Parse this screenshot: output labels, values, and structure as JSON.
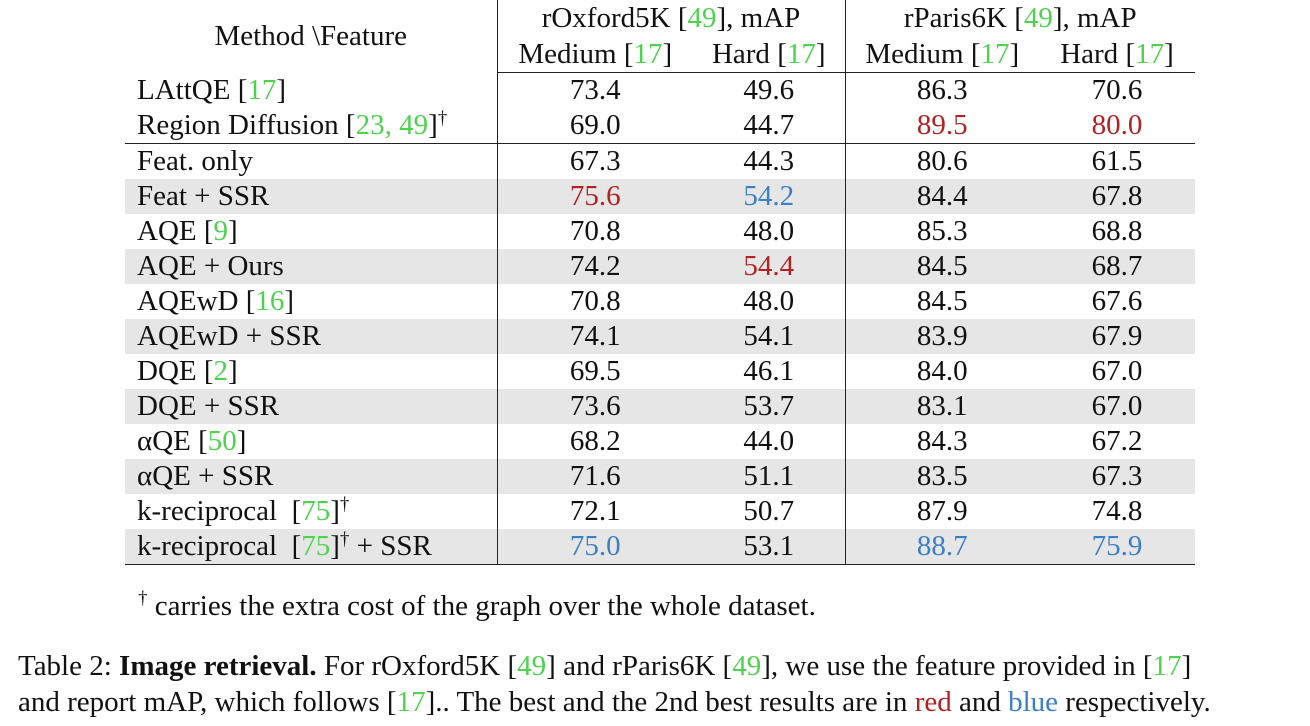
{
  "table": {
    "corner_header": "Method \\Feature",
    "groups": [
      {
        "name": "rOxford5K",
        "cite": "49",
        "metric": ", mAP"
      },
      {
        "name": "rParis6K",
        "cite": "49",
        "metric": ", mAP"
      }
    ],
    "subheaders": [
      {
        "label": "Medium",
        "cite": "17"
      },
      {
        "label": "Hard",
        "cite": "17"
      },
      {
        "label": "Medium",
        "cite": "17"
      },
      {
        "label": "Hard",
        "cite": "17"
      }
    ],
    "rows": [
      {
        "method": "LAttQE",
        "cite": "17",
        "values": [
          "73.4",
          "49.6",
          "86.3",
          "70.6"
        ]
      },
      {
        "method": "Region Diffusion",
        "cite": "23, 49",
        "values": [
          "69.0",
          "44.7",
          "89.5",
          "80.0"
        ]
      },
      {
        "method": "Feat. only",
        "values": [
          "67.3",
          "44.3",
          "80.6",
          "61.5"
        ]
      },
      {
        "method": "Feat + SSR",
        "values": [
          "75.6",
          "54.2",
          "84.4",
          "67.8"
        ]
      },
      {
        "method": "AQE",
        "cite": "9",
        "values": [
          "70.8",
          "48.0",
          "85.3",
          "68.8"
        ]
      },
      {
        "method": "AQE + Ours",
        "values": [
          "74.2",
          "54.4",
          "84.5",
          "68.7"
        ]
      },
      {
        "method": "AQEwD",
        "cite": "16",
        "values": [
          "70.8",
          "48.0",
          "84.5",
          "67.6"
        ]
      },
      {
        "method": "AQEwD + SSR",
        "values": [
          "74.1",
          "54.1",
          "83.9",
          "67.9"
        ]
      },
      {
        "method": "DQE",
        "cite": "2",
        "values": [
          "69.5",
          "46.1",
          "84.0",
          "67.0"
        ]
      },
      {
        "method": "DQE + SSR",
        "values": [
          "73.6",
          "53.7",
          "83.1",
          "67.0"
        ]
      },
      {
        "method": "αQE",
        "cite": "50",
        "values": [
          "68.2",
          "44.0",
          "84.3",
          "67.2"
        ]
      },
      {
        "method": "αQE + SSR",
        "values": [
          "71.6",
          "51.1",
          "83.5",
          "67.3"
        ]
      },
      {
        "method": "k-reciprocal",
        "cite": "75",
        "values": [
          "72.1",
          "50.7",
          "87.9",
          "74.8"
        ]
      },
      {
        "method": "k-reciprocal",
        "cite": "75",
        "suffix": " + SSR",
        "values": [
          "75.0",
          "53.1",
          "88.7",
          "75.9"
        ]
      }
    ],
    "dagger": "†",
    "footnote": " carries the extra cost of the graph over the whole dataset."
  },
  "caption": {
    "label": "Table 2: ",
    "bold": "Image retrieval.",
    "t1": " For rOxford5K [",
    "c1": "49",
    "t2": "] and rParis6K [",
    "c2": "49",
    "t3": "], we use the feature provided in [",
    "c3": "17",
    "t4": "]",
    "t5": "and report mAP, which follows [",
    "c4": "17",
    "t6": "].. The best and the 2nd best results are in ",
    "red_word": "red",
    "t7": " and ",
    "blue_word": "blue",
    "t8": " respectively."
  },
  "colors": {
    "best": "#b22222",
    "second": "#3a7fc8",
    "citation": "#4fd34f"
  }
}
